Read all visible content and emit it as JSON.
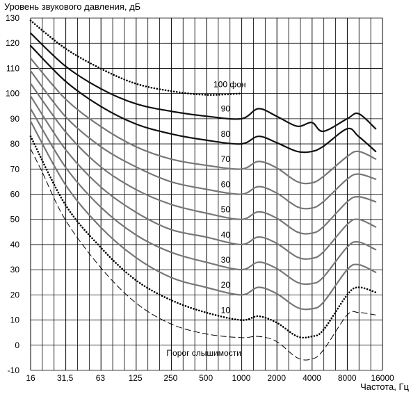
{
  "chart_data": {
    "type": "line",
    "title": "",
    "ylabel": "Уровень звукового давления, дБ",
    "xlabel": "Частота, Гц",
    "x_tick_labels": [
      "16",
      "31,5",
      "63",
      "125",
      "250",
      "500",
      "1000",
      "2000",
      "4000",
      "8000",
      "16000"
    ],
    "y_tick_labels": [
      "-10",
      "0",
      "10",
      "20",
      "30",
      "40",
      "50",
      "60",
      "70",
      "80",
      "90",
      "100",
      "110",
      "120",
      "130"
    ],
    "x_scale": "log2",
    "ylim": [
      -10,
      130
    ],
    "grid": true,
    "series": [
      {
        "name": "Порог слышимости",
        "style": "dashed",
        "label": "Порог слышимости",
        "x": [
          16,
          20,
          31.5,
          63,
          125,
          250,
          500,
          1000,
          1400,
          2000,
          3000,
          4000,
          5000,
          8000,
          10000,
          14000
        ],
        "y": [
          78,
          69,
          50,
          31,
          17,
          8.5,
          4.5,
          3,
          3.5,
          1.5,
          -5,
          -5.5,
          -2,
          12,
          13,
          12
        ]
      },
      {
        "name": "10",
        "style": "dotted",
        "label": "10",
        "x": [
          16,
          31.5,
          63,
          125,
          250,
          500,
          1000,
          1400,
          2000,
          3000,
          4000,
          5000,
          8000,
          10000,
          14000
        ],
        "y": [
          83,
          56,
          39,
          26,
          18,
          13,
          10,
          11.5,
          9,
          3.5,
          3.5,
          6,
          20,
          23,
          21
        ]
      },
      {
        "name": "20",
        "style": "solid-gray",
        "label": "20",
        "x": [
          16,
          31.5,
          63,
          125,
          250,
          500,
          1000,
          1400,
          2000,
          3000,
          4000,
          5000,
          8000,
          10000,
          14000
        ],
        "y": [
          89,
          64,
          47,
          35,
          27,
          23,
          20,
          23,
          20.5,
          15,
          14.5,
          17,
          30,
          32,
          29
        ]
      },
      {
        "name": "30",
        "style": "solid-gray",
        "label": "30",
        "x": [
          16,
          31.5,
          63,
          125,
          250,
          500,
          1000,
          1400,
          2000,
          3000,
          4000,
          5000,
          8000,
          10000,
          14000
        ],
        "y": [
          94,
          71,
          55,
          44,
          37,
          33,
          30,
          33,
          30.5,
          25,
          24.5,
          27,
          39,
          41,
          38
        ]
      },
      {
        "name": "40",
        "style": "solid-gray",
        "label": "40",
        "x": [
          16,
          31.5,
          63,
          125,
          250,
          500,
          1000,
          1400,
          2000,
          3000,
          4000,
          5000,
          8000,
          10000,
          14000
        ],
        "y": [
          99,
          78,
          63,
          53,
          46,
          43,
          40,
          43,
          40.5,
          35,
          34.5,
          37,
          48,
          50,
          47
        ]
      },
      {
        "name": "50",
        "style": "solid-gray",
        "label": "50",
        "x": [
          16,
          31.5,
          63,
          125,
          250,
          500,
          1000,
          1400,
          2000,
          3000,
          4000,
          5000,
          8000,
          10000,
          14000
        ],
        "y": [
          104,
          85,
          71,
          62,
          56,
          52.5,
          50,
          53,
          50.5,
          45,
          44.5,
          47,
          57,
          59,
          57
        ]
      },
      {
        "name": "60",
        "style": "solid-gray",
        "label": "60",
        "x": [
          16,
          31.5,
          63,
          125,
          250,
          500,
          1000,
          1400,
          2000,
          3000,
          4000,
          5000,
          8000,
          10000,
          14000
        ],
        "y": [
          109,
          91,
          79,
          71,
          65,
          62,
          60,
          63,
          60.5,
          55,
          54.5,
          57,
          66,
          68,
          66
        ]
      },
      {
        "name": "70",
        "style": "solid-gray",
        "label": "70",
        "x": [
          16,
          31.5,
          63,
          125,
          250,
          500,
          1000,
          1400,
          2000,
          3000,
          4000,
          5000,
          8000,
          10000,
          14000
        ],
        "y": [
          114,
          98,
          87,
          79,
          74,
          71.5,
          70,
          73,
          70.5,
          65,
          64.5,
          67,
          75,
          77,
          74
        ]
      },
      {
        "name": "80",
        "style": "solid-black",
        "label": "80",
        "x": [
          16,
          31.5,
          63,
          125,
          250,
          500,
          1000,
          1400,
          2000,
          3000,
          4000,
          5000,
          8000,
          10000,
          14000
        ],
        "y": [
          119,
          105,
          95,
          88,
          84,
          81.5,
          80,
          83,
          80.5,
          77,
          77,
          79,
          86,
          83,
          77
        ]
      },
      {
        "name": "90",
        "style": "solid-black",
        "label": "90",
        "x": [
          16,
          31.5,
          63,
          125,
          250,
          500,
          1000,
          1400,
          2000,
          3000,
          4000,
          5000,
          8000,
          10000,
          14000
        ],
        "y": [
          124,
          111,
          102,
          96,
          93,
          91,
          90,
          94,
          91,
          87,
          88.5,
          85,
          90,
          92,
          86
        ]
      },
      {
        "name": "100 фон",
        "style": "dotted",
        "label": "100 фон",
        "x": [
          16,
          31.5,
          63,
          125,
          250,
          500,
          1000
        ],
        "y": [
          129,
          118,
          110,
          104,
          101,
          99.5,
          100
        ]
      }
    ]
  }
}
